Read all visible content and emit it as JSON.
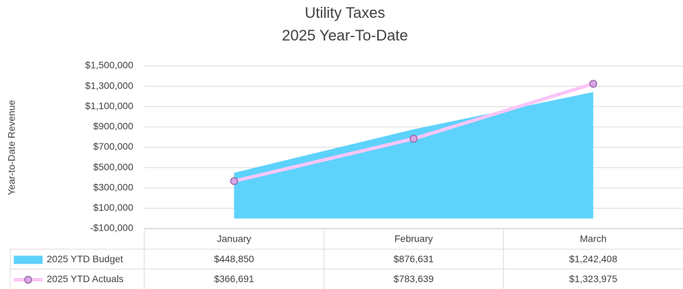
{
  "chart_data": {
    "type": "area",
    "title": "Utility Taxes",
    "subtitle": "2025 Year-To-Date",
    "y_label": "Year-to-Date Revenue",
    "categories": [
      "January",
      "February",
      "March"
    ],
    "series": [
      {
        "name": "2025 YTD Budget",
        "type": "area",
        "color": "#5dd2fb",
        "values": [
          448850,
          876631,
          1242408
        ],
        "value_labels": [
          "$448,850",
          "$876,631",
          "$1,242,408"
        ]
      },
      {
        "name": "2025 YTD Actuals",
        "type": "line",
        "color": "#f9c6f6",
        "marker_color": "#d9a6e6",
        "marker_edge": "#9a6aae",
        "values": [
          366691,
          783639,
          1323975
        ],
        "value_labels": [
          "$366,691",
          "$783,639",
          "$1,323,975"
        ]
      }
    ],
    "ylim": [
      -100000,
      1500000
    ],
    "yticks": [
      {
        "value": -100000,
        "label": "-$100,000"
      },
      {
        "value": 100000,
        "label": "$100,000"
      },
      {
        "value": 300000,
        "label": "$300,000"
      },
      {
        "value": 500000,
        "label": "$500,000"
      },
      {
        "value": 700000,
        "label": "$700,000"
      },
      {
        "value": 900000,
        "label": "$900,000"
      },
      {
        "value": 1100000,
        "label": "$1,100,000"
      },
      {
        "value": 1300000,
        "label": "$1,300,000"
      },
      {
        "value": 1500000,
        "label": "$1,500,000"
      }
    ],
    "grid": true
  }
}
